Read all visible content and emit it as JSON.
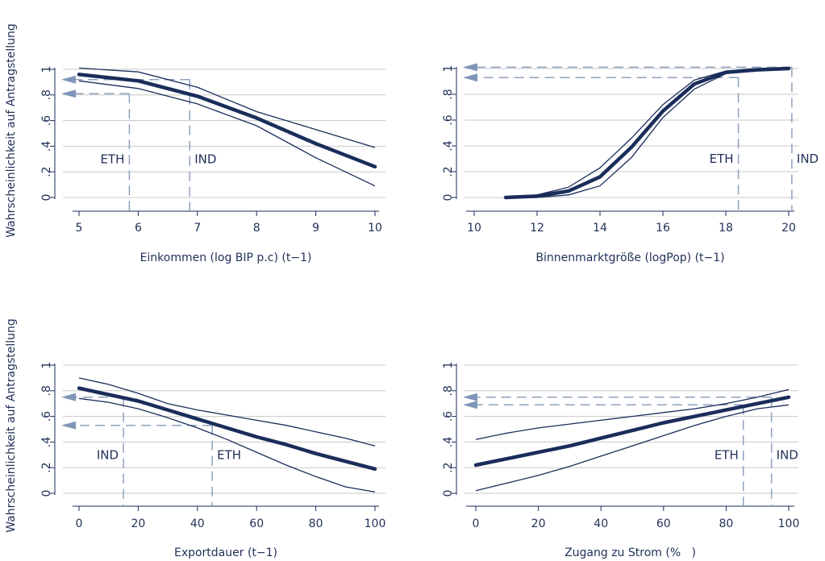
{
  "y_axis_label": "Wahrscheinlichkeit auf Antragstellung",
  "colors": {
    "main": "#1a2d5a",
    "grid": "#c8c8c8",
    "arrow": "#7f96b8",
    "dash": "#8da0bf"
  },
  "chart_data": [
    {
      "type": "line",
      "xlabel": "Einkommen (log BIP p.c) (t−1)",
      "ylabel": "Wahrscheinlichkeit auf Antragstellung",
      "xlim": [
        5,
        10
      ],
      "ylim": [
        0,
        1
      ],
      "x_ticks": [
        "5",
        "6",
        "7",
        "8",
        "9",
        "10"
      ],
      "y_ticks": [
        "0",
        ".2",
        ".4",
        ".6",
        ".8",
        "1"
      ],
      "x": [
        5,
        6,
        7,
        8,
        9,
        10
      ],
      "estimate": [
        0.96,
        0.91,
        0.79,
        0.62,
        0.42,
        0.24
      ],
      "upper": [
        1.01,
        0.98,
        0.86,
        0.67,
        0.53,
        0.39
      ],
      "lower": [
        0.91,
        0.85,
        0.73,
        0.56,
        0.31,
        0.09
      ],
      "annotations": [
        {
          "label": "ETH",
          "x": 5.85,
          "y": 0.81,
          "label_side": "left"
        },
        {
          "label": "IND",
          "x": 6.87,
          "y": 0.92,
          "label_side": "right"
        }
      ]
    },
    {
      "type": "line",
      "xlabel": "Binnenmarktgröße (logPop) (t−1)",
      "ylabel": "",
      "xlim": [
        10,
        20
      ],
      "ylim": [
        0,
        1
      ],
      "x_ticks": [
        "10",
        "12",
        "14",
        "16",
        "18",
        "20"
      ],
      "y_ticks": [
        "0",
        ".2",
        ".4",
        ".6",
        ".8",
        "1"
      ],
      "x": [
        11,
        12,
        13,
        14,
        15,
        16,
        17,
        18,
        19,
        20
      ],
      "estimate": [
        0.0,
        0.01,
        0.05,
        0.16,
        0.39,
        0.67,
        0.88,
        0.97,
        0.99,
        1.0
      ],
      "upper": [
        0.0,
        0.02,
        0.08,
        0.23,
        0.46,
        0.72,
        0.91,
        0.98,
        1.0,
        1.0
      ],
      "lower": [
        0.0,
        0.0,
        0.02,
        0.09,
        0.31,
        0.62,
        0.84,
        0.96,
        0.99,
        1.0
      ],
      "annotations": [
        {
          "label": "ETH",
          "x": 18.4,
          "y": 0.93,
          "label_side": "left"
        },
        {
          "label": "IND",
          "x": 20.1,
          "y": 1.01,
          "label_side": "right"
        }
      ]
    },
    {
      "type": "line",
      "xlabel": "Exportdauer (t−1)",
      "ylabel": "Wahrscheinlichkeit auf Antragstellung",
      "xlim": [
        0,
        100
      ],
      "ylim": [
        0,
        1
      ],
      "x_ticks": [
        "0",
        "20",
        "40",
        "60",
        "80",
        "100"
      ],
      "y_ticks": [
        "0",
        ".2",
        ".4",
        ".6",
        ".8",
        "1"
      ],
      "x": [
        0,
        10,
        20,
        30,
        40,
        50,
        60,
        70,
        80,
        90,
        100
      ],
      "estimate": [
        0.82,
        0.77,
        0.72,
        0.65,
        0.58,
        0.51,
        0.44,
        0.38,
        0.31,
        0.25,
        0.19
      ],
      "upper": [
        0.9,
        0.85,
        0.78,
        0.7,
        0.65,
        0.61,
        0.57,
        0.53,
        0.48,
        0.43,
        0.37
      ],
      "lower": [
        0.74,
        0.71,
        0.66,
        0.59,
        0.51,
        0.42,
        0.32,
        0.22,
        0.13,
        0.05,
        0.01
      ],
      "annotations": [
        {
          "label": "IND",
          "x": 15,
          "y": 0.75,
          "label_side": "left"
        },
        {
          "label": "ETH",
          "x": 45,
          "y": 0.53,
          "label_side": "right"
        }
      ]
    },
    {
      "type": "line",
      "xlabel": "Zugang zu Strom (%   )",
      "ylabel": "",
      "xlim": [
        0,
        100
      ],
      "ylim": [
        0,
        1
      ],
      "x_ticks": [
        "0",
        "20",
        "40",
        "60",
        "80",
        "100"
      ],
      "y_ticks": [
        "0",
        ".2",
        ".4",
        ".6",
        ".8",
        "1"
      ],
      "x": [
        0,
        10,
        20,
        30,
        40,
        50,
        60,
        70,
        80,
        90,
        100
      ],
      "estimate": [
        0.22,
        0.27,
        0.32,
        0.37,
        0.43,
        0.49,
        0.55,
        0.6,
        0.65,
        0.7,
        0.75
      ],
      "upper": [
        0.42,
        0.47,
        0.51,
        0.54,
        0.57,
        0.6,
        0.63,
        0.66,
        0.7,
        0.75,
        0.81
      ],
      "lower": [
        0.02,
        0.08,
        0.14,
        0.21,
        0.29,
        0.37,
        0.45,
        0.53,
        0.6,
        0.66,
        0.69
      ],
      "annotations": [
        {
          "label": "ETH",
          "x": 85.5,
          "y": 0.69,
          "label_side": "left"
        },
        {
          "label": "IND",
          "x": 94.5,
          "y": 0.75,
          "label_side": "right"
        }
      ]
    }
  ]
}
